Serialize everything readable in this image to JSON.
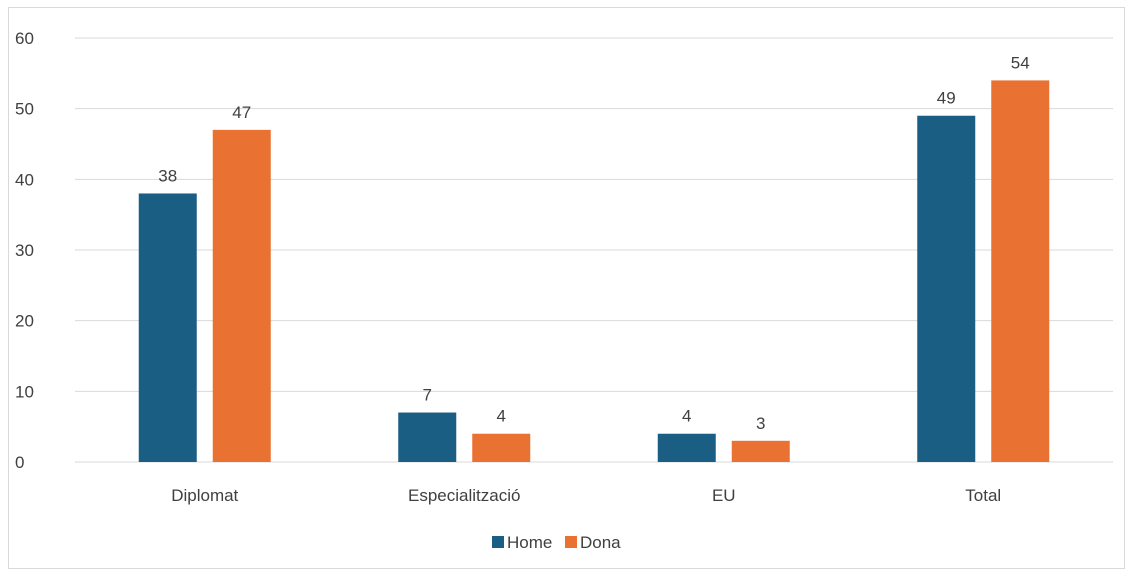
{
  "chart_data": {
    "type": "bar",
    "categories": [
      "Diplomat",
      "Especialització",
      "EU",
      "Total"
    ],
    "series": [
      {
        "name": "Home",
        "values": [
          38,
          7,
          4,
          49
        ],
        "color": "#1a5e83"
      },
      {
        "name": "Dona",
        "values": [
          47,
          4,
          3,
          54
        ],
        "color": "#e97132"
      }
    ],
    "yticks": [
      0,
      10,
      20,
      30,
      40,
      50,
      60
    ],
    "ylim": [
      0,
      60
    ],
    "grid": true,
    "data_labels": true,
    "legend_position": "bottom",
    "gridline_color": "#d9d9d9",
    "text_color": "#404040"
  }
}
